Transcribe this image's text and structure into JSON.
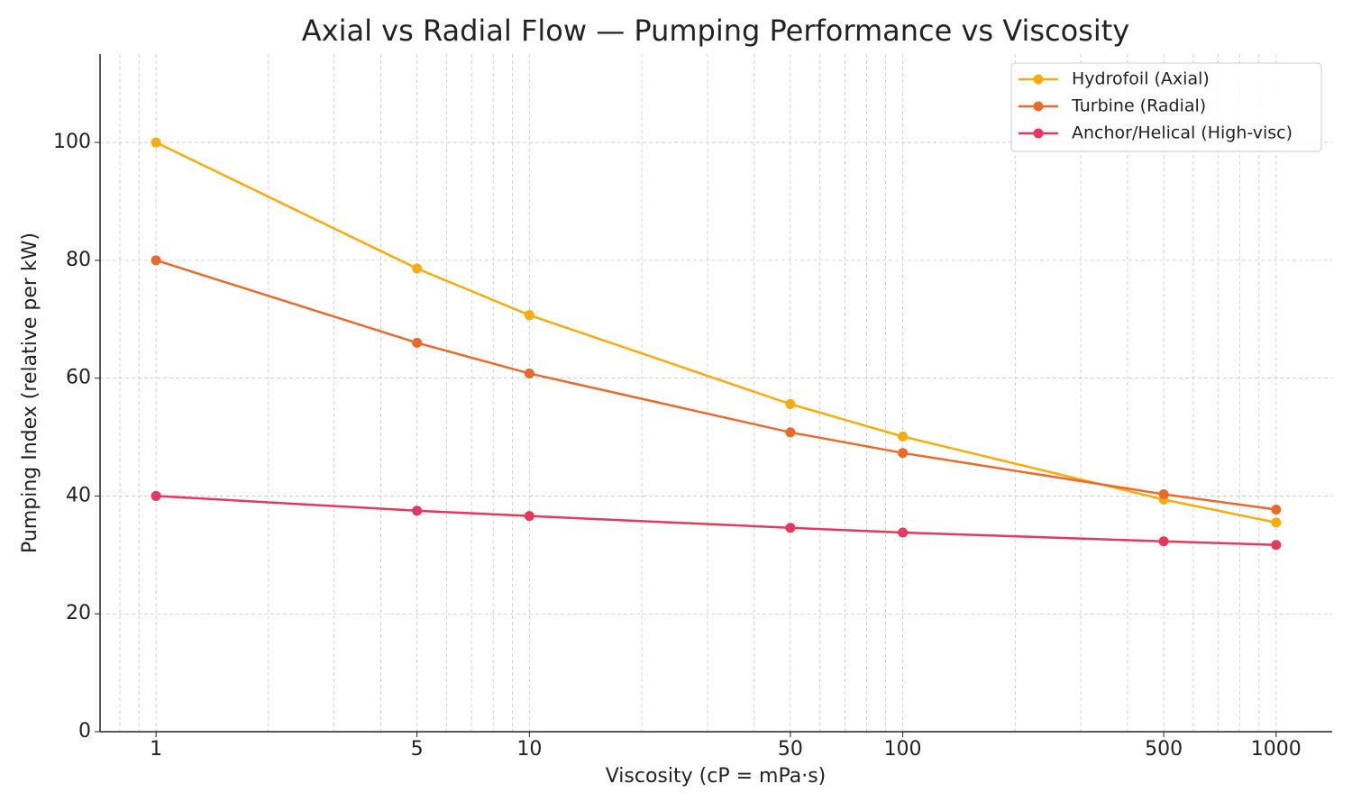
{
  "chart_data": {
    "type": "line",
    "title": "Axial vs Radial Flow — Pumping Performance vs Viscosity",
    "x_label": "Viscosity (cP = mPa·s)",
    "y_label": "Pumping Index (relative per kW)",
    "x": [
      1,
      5,
      10,
      50,
      100,
      500,
      1000
    ],
    "x_scale": "log",
    "series": [
      {
        "name": "Hydrofoil (Axial)",
        "color": "#f7ac0c",
        "values": [
          100,
          78.6,
          70.7,
          55.6,
          50.1,
          39.4,
          35.5
        ]
      },
      {
        "name": "Turbine (Radial)",
        "color": "#ea6a2c",
        "values": [
          80,
          66.0,
          60.8,
          50.8,
          47.3,
          40.3,
          37.7
        ]
      },
      {
        "name": "Anchor/Helical (High-visc)",
        "color": "#e6375c",
        "values": [
          40,
          37.5,
          36.6,
          34.6,
          33.8,
          32.3,
          31.7
        ]
      }
    ],
    "xlim": [
      0.708,
      1413
    ],
    "ylim": [
      0,
      115
    ],
    "xticks": [
      1,
      5,
      10,
      50,
      100,
      500,
      1000
    ],
    "xminorticks": [
      0.8,
      0.9,
      2,
      3,
      4,
      6,
      7,
      8,
      9,
      20,
      30,
      40,
      60,
      70,
      80,
      90,
      200,
      300,
      400,
      600,
      700,
      800,
      900
    ],
    "yticks": [
      0,
      20,
      40,
      60,
      80,
      100
    ],
    "grid": true,
    "legend": "upper right"
  }
}
